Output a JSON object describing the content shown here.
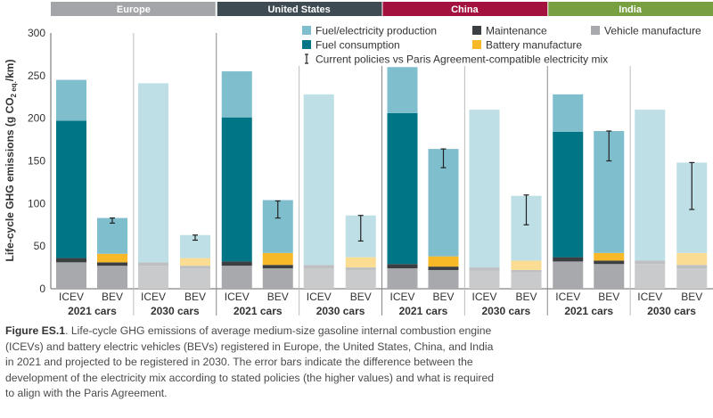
{
  "chart_data": {
    "type": "bar",
    "stacked": true,
    "ylabel_parts": [
      "Life-cycle GHG emissions (g CO",
      "2 eq.",
      "/km)"
    ],
    "ylim": [
      0,
      300
    ],
    "yticks": [
      0,
      50,
      100,
      150,
      200,
      250,
      300
    ],
    "regions": [
      {
        "name": "Europe",
        "color": "#a3a5a8"
      },
      {
        "name": "United States",
        "color": "#3f4b53"
      },
      {
        "name": "China",
        "color": "#a3123f"
      },
      {
        "name": "India",
        "color": "#78a041"
      }
    ],
    "cohorts": [
      "2021 cars",
      "2030 cars"
    ],
    "vehicles": [
      "ICEV",
      "BEV"
    ],
    "legend": [
      {
        "label": "Fuel/electricity production",
        "component": "production",
        "color": "#7fbecd"
      },
      {
        "label": "Maintenance",
        "component": "maintenance",
        "color": "#3b3f42"
      },
      {
        "label": "Vehicle manufacture",
        "component": "vehicle",
        "color": "#a7a9ac"
      },
      {
        "label": "Fuel consumption",
        "component": "consumption",
        "color": "#007586"
      },
      {
        "label": "Battery manufacture",
        "component": "battery",
        "color": "#f7b928"
      },
      {
        "label": "Current policies vs Paris Agreement-compatible electricity mix",
        "component": "errorbar",
        "color": "#222222"
      }
    ],
    "faded_colors": {
      "production": "#bedfe6",
      "maintenance": "#bdbfc1",
      "vehicle": "#c9cacc",
      "consumption": "#7fbac2",
      "battery": "#fbdc93"
    },
    "bars": [
      {
        "region": "Europe",
        "cohort": "2021 cars",
        "vehicle": "ICEV",
        "vehicle_mfg": 31,
        "maintenance": 5,
        "battery": 0,
        "consumption": 161,
        "production": 48,
        "error": null
      },
      {
        "region": "Europe",
        "cohort": "2021 cars",
        "vehicle": "BEV",
        "vehicle_mfg": 27,
        "maintenance": 4,
        "battery": 10,
        "consumption": 0,
        "production": 42,
        "error": [
          77,
          83
        ]
      },
      {
        "region": "Europe",
        "cohort": "2030 cars",
        "vehicle": "ICEV",
        "vehicle_mfg": 27,
        "maintenance": 4,
        "battery": 0,
        "consumption": 0,
        "production": 210,
        "error": null
      },
      {
        "region": "Europe",
        "cohort": "2030 cars",
        "vehicle": "BEV",
        "vehicle_mfg": 24,
        "maintenance": 3,
        "battery": 9,
        "consumption": 0,
        "production": 27,
        "error": [
          57,
          63
        ]
      },
      {
        "region": "United States",
        "cohort": "2021 cars",
        "vehicle": "ICEV",
        "vehicle_mfg": 27,
        "maintenance": 5,
        "battery": 0,
        "consumption": 169,
        "production": 54,
        "error": null
      },
      {
        "region": "United States",
        "cohort": "2021 cars",
        "vehicle": "BEV",
        "vehicle_mfg": 24,
        "maintenance": 4,
        "battery": 14,
        "consumption": 0,
        "production": 62,
        "error": [
          83,
          103
        ]
      },
      {
        "region": "United States",
        "cohort": "2030 cars",
        "vehicle": "ICEV",
        "vehicle_mfg": 24,
        "maintenance": 4,
        "battery": 0,
        "consumption": 0,
        "production": 200,
        "error": null
      },
      {
        "region": "United States",
        "cohort": "2030 cars",
        "vehicle": "BEV",
        "vehicle_mfg": 22,
        "maintenance": 3,
        "battery": 12,
        "consumption": 0,
        "production": 49,
        "error": [
          56,
          86
        ]
      },
      {
        "region": "China",
        "cohort": "2021 cars",
        "vehicle": "ICEV",
        "vehicle_mfg": 24,
        "maintenance": 5,
        "battery": 0,
        "consumption": 177,
        "production": 54,
        "error": null
      },
      {
        "region": "China",
        "cohort": "2021 cars",
        "vehicle": "BEV",
        "vehicle_mfg": 22,
        "maintenance": 4,
        "battery": 12,
        "consumption": 0,
        "production": 126,
        "error": [
          142,
          164
        ]
      },
      {
        "region": "China",
        "cohort": "2030 cars",
        "vehicle": "ICEV",
        "vehicle_mfg": 21,
        "maintenance": 4,
        "battery": 0,
        "consumption": 0,
        "production": 185,
        "error": null
      },
      {
        "region": "China",
        "cohort": "2030 cars",
        "vehicle": "BEV",
        "vehicle_mfg": 19,
        "maintenance": 3,
        "battery": 11,
        "consumption": 0,
        "production": 76,
        "error": [
          75,
          110
        ]
      },
      {
        "region": "India",
        "cohort": "2021 cars",
        "vehicle": "ICEV",
        "vehicle_mfg": 32,
        "maintenance": 5,
        "battery": 0,
        "consumption": 147,
        "production": 44,
        "error": null
      },
      {
        "region": "India",
        "cohort": "2021 cars",
        "vehicle": "BEV",
        "vehicle_mfg": 29,
        "maintenance": 4,
        "battery": 9,
        "consumption": 0,
        "production": 143,
        "error": [
          150,
          185
        ]
      },
      {
        "region": "India",
        "cohort": "2030 cars",
        "vehicle": "ICEV",
        "vehicle_mfg": 29,
        "maintenance": 4,
        "battery": 0,
        "consumption": 0,
        "production": 177,
        "error": null
      },
      {
        "region": "India",
        "cohort": "2030 cars",
        "vehicle": "BEV",
        "vehicle_mfg": 24,
        "maintenance": 4,
        "battery": 14,
        "consumption": 0,
        "production": 106,
        "error": [
          93,
          148
        ]
      }
    ]
  },
  "caption": {
    "label": "Figure ES.1",
    "text": ". Life-cycle GHG emissions of average medium-size gasoline internal combustion engine (ICEVs) and battery electric vehicles (BEVs) registered in Europe, the United States, China, and India in 2021 and projected to be registered in 2030. The error bars indicate the difference between the development of the electricity mix according to stated policies (the higher values) and what is required to align with the Paris Agreement."
  }
}
